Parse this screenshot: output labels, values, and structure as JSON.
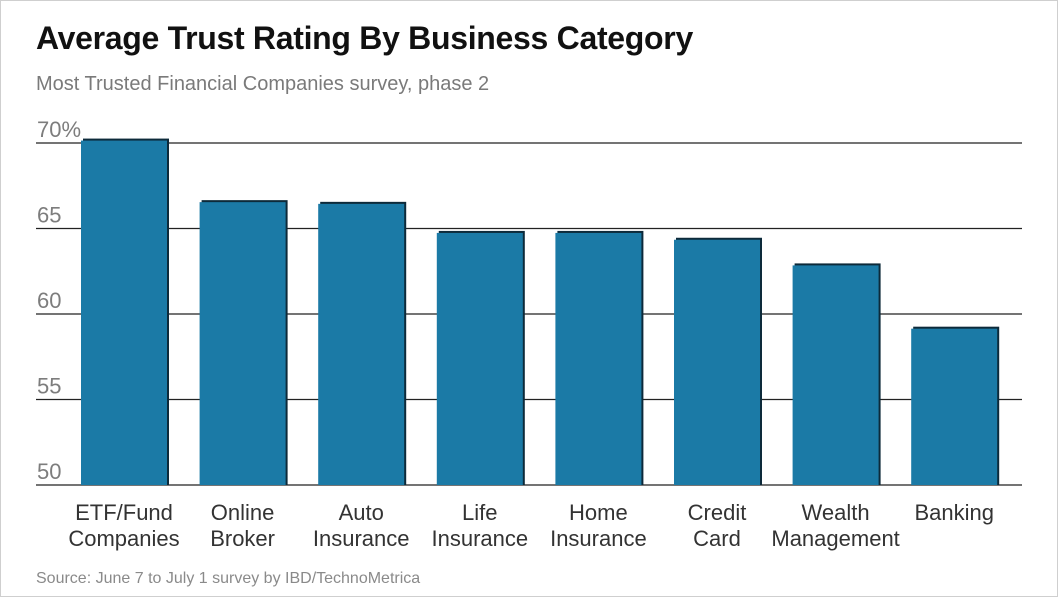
{
  "header": {
    "title": "Average Trust Rating By Business Category",
    "subtitle": "Most Trusted Financial Companies survey, phase 2"
  },
  "footer": {
    "source": "Source: June 7 to July 1 survey by IBD/TechnoMetrica"
  },
  "chart_data": {
    "type": "bar",
    "title": "Average Trust Rating By Business Category",
    "subtitle": "Most Trusted Financial Companies survey, phase 2",
    "xlabel": "",
    "ylabel": "",
    "ylim": [
      50,
      70
    ],
    "yticks": [
      "70%",
      "65",
      "60",
      "55",
      "50"
    ],
    "ytick_values": [
      70,
      65,
      60,
      55,
      50
    ],
    "grid": true,
    "categories": [
      [
        "ETF/Fund",
        "Companies"
      ],
      [
        "Online",
        "Broker"
      ],
      [
        "Auto",
        "Insurance"
      ],
      [
        "Life",
        "Insurance"
      ],
      [
        "Home",
        "Insurance"
      ],
      [
        "Credit",
        "Card"
      ],
      [
        "Wealth",
        "Management"
      ],
      [
        "Banking"
      ]
    ],
    "values": [
      70.2,
      66.6,
      66.5,
      64.8,
      64.8,
      64.4,
      62.9,
      59.2
    ],
    "bar_color": "#1b7aa6",
    "bar_shadow_color": "#0d2a3a",
    "gridline_color": "#222222"
  }
}
